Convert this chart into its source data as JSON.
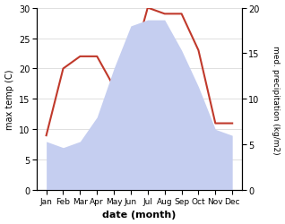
{
  "months": [
    "Jan",
    "Feb",
    "Mar",
    "Apr",
    "May",
    "Jun",
    "Jul",
    "Aug",
    "Sep",
    "Oct",
    "Nov",
    "Dec"
  ],
  "temperature": [
    9,
    20,
    22,
    22,
    17,
    20,
    30,
    29,
    29,
    23,
    11,
    11
  ],
  "precip_left_scale": [
    8,
    7,
    8,
    12,
    20,
    27,
    28,
    28,
    23,
    17,
    10,
    9
  ],
  "temp_color": "#c0392b",
  "precip_fill_color": "#c5cef0",
  "left_ylim": [
    0,
    30
  ],
  "right_ylim": [
    0,
    20
  ],
  "left_yticks": [
    0,
    5,
    10,
    15,
    20,
    25,
    30
  ],
  "right_yticks": [
    0,
    5,
    10,
    15,
    20
  ],
  "xlabel": "date (month)",
  "ylabel_left": "max temp (C)",
  "ylabel_right": "med. precipitation (kg/m2)",
  "background_color": "#ffffff"
}
